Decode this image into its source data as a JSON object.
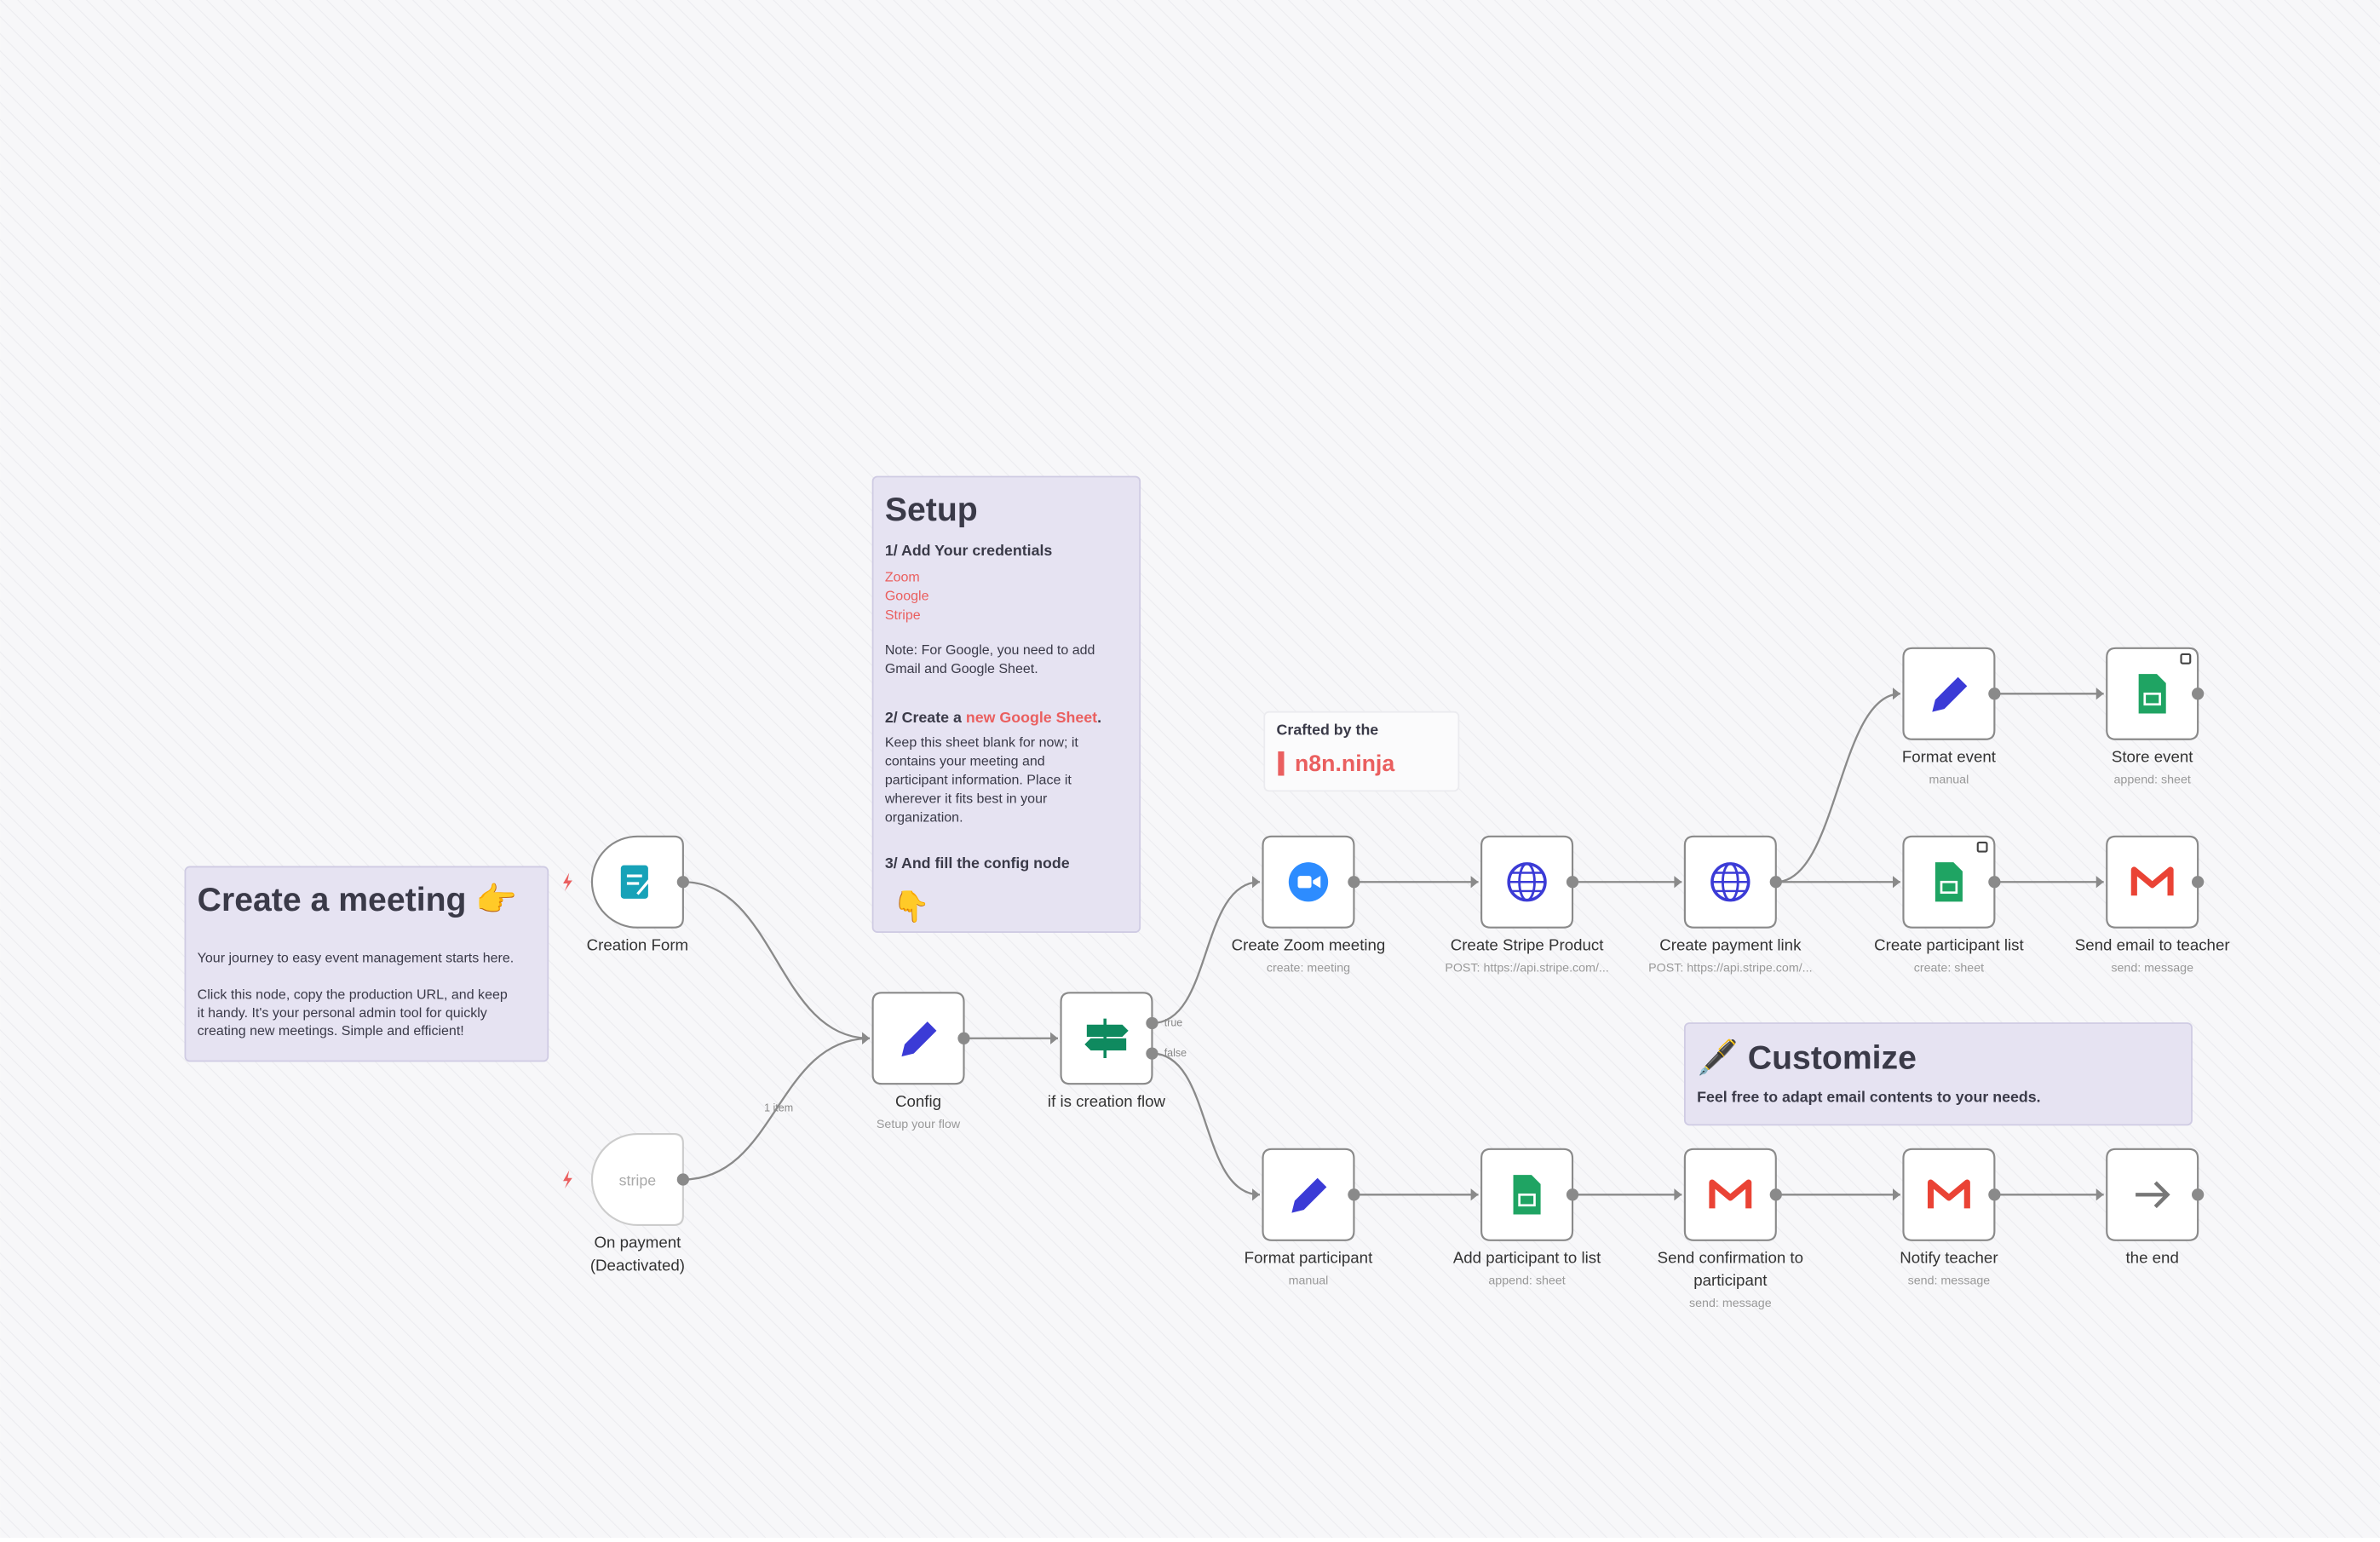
{
  "notes": {
    "meeting": {
      "title": "Create a meeting 👉",
      "lines": [
        "Your journey to easy event management starts here.",
        "",
        "Click this node, copy the production URL, and keep",
        "it handy. It's your personal admin tool for quickly",
        "creating new meetings. Simple and efficient!"
      ]
    },
    "setup": {
      "title": "Setup",
      "step1": "1/ Add Your credentials",
      "credentials": [
        "Zoom",
        "Google",
        "Stripe"
      ],
      "note": [
        "Note: For Google, you need to add",
        "Gmail and Google Sheet."
      ],
      "step2_prefix": "2/ Create a ",
      "step2_link": "new Google Sheet",
      "step2_suffix": ".",
      "step2_body": [
        "Keep this sheet blank for now; it",
        "contains your meeting and",
        "participant information. Place it",
        "wherever it fits best in your",
        "organization."
      ],
      "step3": "3/ And fill the config node",
      "pointer": "👇"
    },
    "crafted": {
      "caption": "Crafted by the",
      "brand": "n8n.ninja"
    },
    "customize": {
      "title": "🖋️ Customize",
      "text": "Feel free to adapt email contents to your needs."
    }
  },
  "nodes": [
    {
      "label": [
        "Creation Form"
      ]
    },
    {
      "label": [
        "On payment",
        "(Deactivated)"
      ],
      "icon_text": "stripe"
    },
    {
      "label": [
        "Config"
      ],
      "subtitle": "Setup your flow"
    },
    {
      "label": [
        "if is creation flow"
      ]
    },
    {
      "label": [
        "Create Zoom meeting"
      ],
      "subtitle": "create: meeting"
    },
    {
      "label": [
        "Create Stripe Product"
      ],
      "subtitle": "POST: https://api.stripe.com/..."
    },
    {
      "label": [
        "Create payment link"
      ],
      "subtitle": "POST: https://api.stripe.com/..."
    },
    {
      "label": [
        "Format event"
      ],
      "subtitle": "manual"
    },
    {
      "label": [
        "Store event"
      ],
      "subtitle": "append: sheet"
    },
    {
      "label": [
        "Create participant list"
      ],
      "subtitle": "create: sheet"
    },
    {
      "label": [
        "Send email to teacher"
      ],
      "subtitle": "send: message"
    },
    {
      "label": [
        "Format participant"
      ],
      "subtitle": "manual"
    },
    {
      "label": [
        "Add participant to list"
      ],
      "subtitle": "append: sheet"
    },
    {
      "label": [
        "Send confirmation to",
        "participant"
      ],
      "subtitle": "send: message"
    },
    {
      "label": [
        "Notify teacher"
      ],
      "subtitle": "send: message"
    },
    {
      "label": [
        "the end"
      ]
    }
  ],
  "edge_labels": {
    "items": "1 item",
    "true": "true",
    "false": "false"
  }
}
